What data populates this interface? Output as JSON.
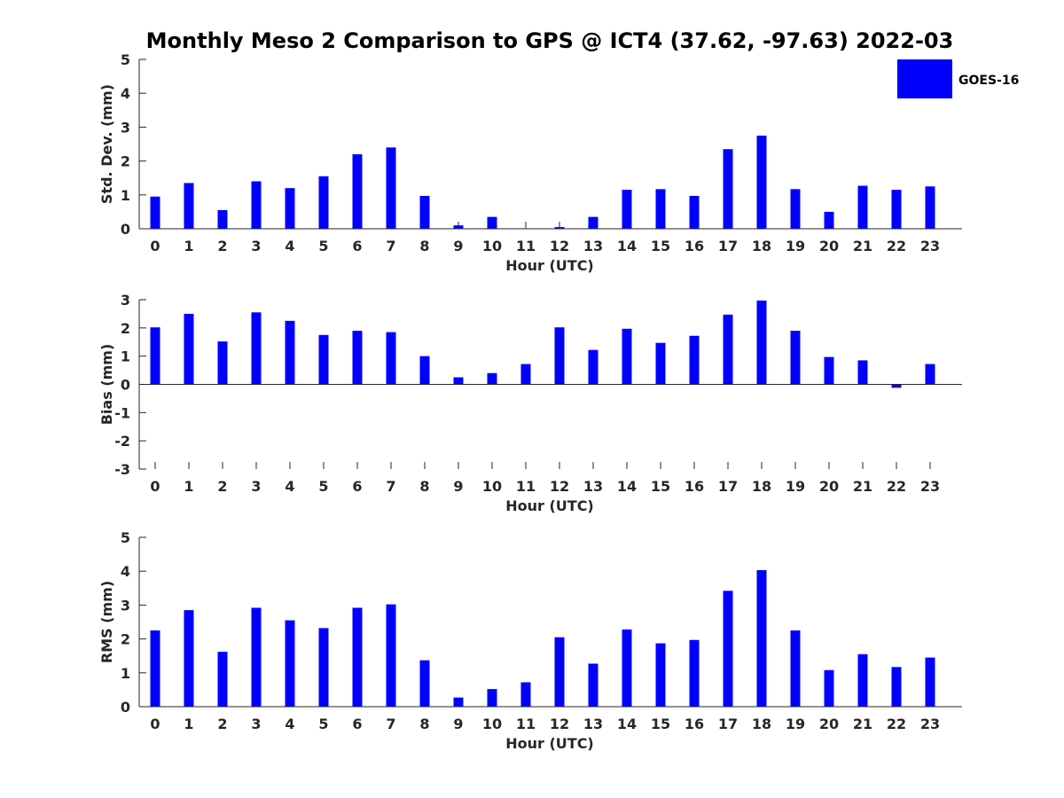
{
  "colors": {
    "bar": "#0000ff",
    "axis": "#262626",
    "background": "#ffffff"
  },
  "chart_data": [
    {
      "type": "bar",
      "title": "Monthly Meso 2 Comparison to GPS @ ICT4 (37.62, -97.63) 2022-03",
      "xlabel": "Hour (UTC)",
      "ylabel": "Std. Dev. (mm)",
      "ylim": [
        0,
        5
      ],
      "yticks": [
        "0",
        "1",
        "2",
        "3",
        "4",
        "5"
      ],
      "categories": [
        "0",
        "1",
        "2",
        "3",
        "4",
        "5",
        "6",
        "7",
        "8",
        "9",
        "10",
        "11",
        "12",
        "13",
        "14",
        "15",
        "16",
        "17",
        "18",
        "19",
        "20",
        "21",
        "22",
        "23"
      ],
      "series": [
        {
          "name": "GOES-16",
          "values": [
            0.95,
            1.35,
            0.55,
            1.4,
            1.2,
            1.55,
            2.2,
            2.4,
            0.97,
            0.1,
            0.35,
            0.0,
            0.05,
            0.35,
            1.15,
            1.17,
            0.97,
            2.35,
            2.75,
            1.17,
            0.5,
            1.27,
            1.15,
            1.25
          ]
        }
      ],
      "legend": {
        "entries": [
          "GOES-16"
        ],
        "placement": "top-right"
      },
      "grid": false
    },
    {
      "type": "bar",
      "title": "",
      "xlabel": "Hour (UTC)",
      "ylabel": "Bias (mm)",
      "ylim": [
        -3,
        3
      ],
      "yticks": [
        "-3",
        "-2",
        "-1",
        "0",
        "1",
        "2",
        "3"
      ],
      "categories": [
        "0",
        "1",
        "2",
        "3",
        "4",
        "5",
        "6",
        "7",
        "8",
        "9",
        "10",
        "11",
        "12",
        "13",
        "14",
        "15",
        "16",
        "17",
        "18",
        "19",
        "20",
        "21",
        "22",
        "23"
      ],
      "series": [
        {
          "name": "GOES-16",
          "values": [
            2.02,
            2.5,
            1.52,
            2.55,
            2.25,
            1.75,
            1.9,
            1.85,
            1.0,
            0.25,
            0.4,
            0.72,
            2.02,
            1.22,
            1.97,
            1.47,
            1.72,
            2.47,
            2.97,
            1.9,
            0.97,
            0.85,
            -0.12,
            0.72
          ]
        }
      ],
      "grid": false
    },
    {
      "type": "bar",
      "title": "",
      "xlabel": "Hour (UTC)",
      "ylabel": "RMS (mm)",
      "ylim": [
        0,
        5
      ],
      "yticks": [
        "0",
        "1",
        "2",
        "3",
        "4",
        "5"
      ],
      "categories": [
        "0",
        "1",
        "2",
        "3",
        "4",
        "5",
        "6",
        "7",
        "8",
        "9",
        "10",
        "11",
        "12",
        "13",
        "14",
        "15",
        "16",
        "17",
        "18",
        "19",
        "20",
        "21",
        "22",
        "23"
      ],
      "series": [
        {
          "name": "GOES-16",
          "values": [
            2.25,
            2.85,
            1.62,
            2.92,
            2.55,
            2.32,
            2.92,
            3.02,
            1.37,
            0.27,
            0.52,
            0.72,
            2.05,
            1.27,
            2.28,
            1.87,
            1.97,
            3.42,
            4.03,
            2.25,
            1.08,
            1.55,
            1.17,
            1.45
          ]
        }
      ],
      "grid": false
    }
  ]
}
